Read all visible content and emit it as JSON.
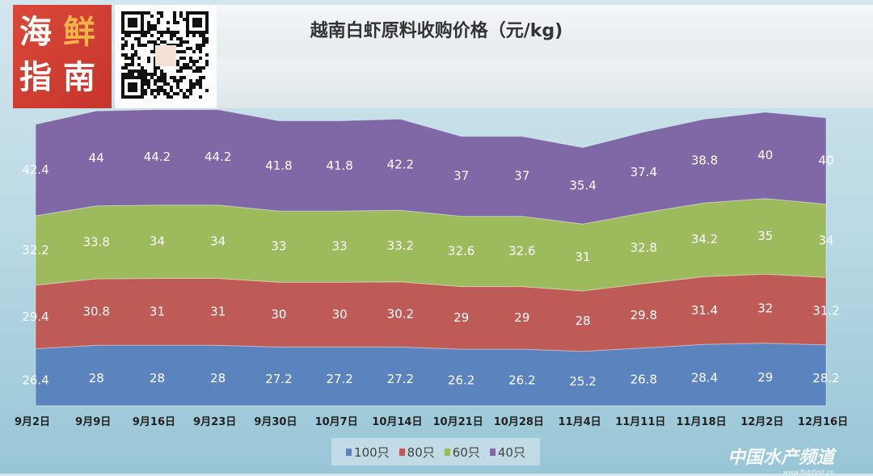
{
  "chart_data": {
    "type": "area",
    "stacked": true,
    "title": "越南白虾原料收购价格（元/kg)",
    "xlabel": "",
    "ylabel": "",
    "grid": false,
    "legend_position": "bottom",
    "categories": [
      "9月2日",
      "9月9日",
      "9月16日",
      "9月23日",
      "9月30日",
      "10月7日",
      "10月14日",
      "10月21日",
      "10月28日",
      "11月4日",
      "11月11日",
      "11月18日",
      "12月2日",
      "12月16日"
    ],
    "series": [
      {
        "name": "100只",
        "color": "#5b84bf",
        "values": [
          26.4,
          28,
          28,
          28,
          27.2,
          27.2,
          27.2,
          26.2,
          26.2,
          25.2,
          26.8,
          28.4,
          29,
          28.2
        ]
      },
      {
        "name": "80只",
        "color": "#bf5b56",
        "values": [
          29.4,
          30.8,
          31,
          31,
          30,
          30,
          30.2,
          29,
          29,
          28,
          29.8,
          31.4,
          32,
          31.2
        ]
      },
      {
        "name": "60只",
        "color": "#9dbb5c",
        "values": [
          32.2,
          33.8,
          34,
          34,
          33,
          33,
          33.2,
          32.6,
          32.6,
          31,
          32.8,
          34.2,
          35,
          34
        ]
      },
      {
        "name": "40只",
        "color": "#8067a6",
        "values": [
          42.4,
          44,
          44.2,
          44.2,
          41.8,
          41.8,
          42.2,
          37,
          37,
          35.4,
          37.4,
          38.8,
          40,
          40
        ]
      }
    ]
  },
  "branding": {
    "logo_text": [
      "海",
      "鲜",
      "指",
      "南"
    ],
    "watermark": "中国水产频道",
    "watermark_url": "www.fishfirst.cn"
  }
}
